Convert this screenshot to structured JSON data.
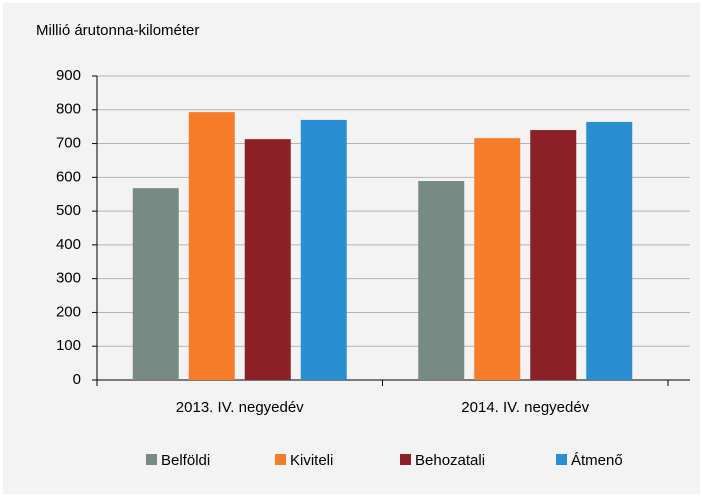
{
  "chart_data": {
    "type": "bar",
    "y_label": "Millió árutonna-kilométer",
    "categories": [
      "2013. IV. negyedév",
      "2014. IV. negyedév"
    ],
    "series": [
      {
        "name": "Belföldi",
        "color": "#778a83",
        "values": [
          568,
          589
        ]
      },
      {
        "name": "Kiviteli",
        "color": "#f47c2a",
        "values": [
          793,
          716
        ]
      },
      {
        "name": "Behozatali",
        "color": "#8b2027",
        "values": [
          713,
          740
        ]
      },
      {
        "name": "Átmenő",
        "color": "#2a8fd0",
        "values": [
          770,
          764
        ]
      }
    ],
    "ylim": [
      0,
      900
    ],
    "yticks": [
      0,
      100,
      200,
      300,
      400,
      500,
      600,
      700,
      800,
      900
    ],
    "grid": true,
    "legend": "bottom"
  }
}
